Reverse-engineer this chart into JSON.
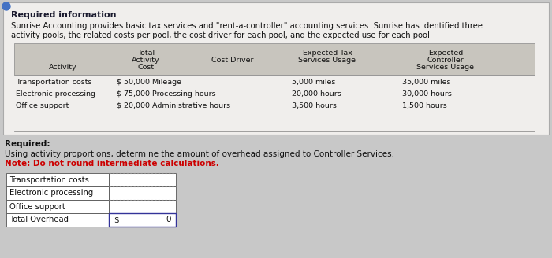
{
  "bg_color": "#c8c8c8",
  "panel_color": "#f0eeec",
  "table_bg": "#c8c5be",
  "white": "#ffffff",
  "title_bold": "Required information",
  "intro_line1": "Sunrise Accounting provides basic tax services and \"rent-a-controller\" accounting services. Sunrise has identified three",
  "intro_line2": "activity pools, the related costs per pool, the cost driver for each pool, and the expected use for each pool.",
  "col_headers": [
    [
      "",
      "",
      "Activity",
      ""
    ],
    [
      "Total",
      "Activity",
      "Cost",
      ""
    ],
    [
      "",
      "Cost Driver",
      "",
      ""
    ],
    [
      "",
      "Expected Tax",
      "Services Usage",
      ""
    ],
    [
      "Expected",
      "Controller",
      "Services Usage",
      ""
    ]
  ],
  "table_rows": [
    [
      "Transportation costs",
      "$ 50,000 Mileage",
      "5,000 miles",
      "35,000 miles"
    ],
    [
      "Electronic processing",
      "$ 75,000 Processing hours",
      "20,000 hours",
      "30,000 hours"
    ],
    [
      "Office support",
      "$ 20,000 Administrative hours",
      "3,500 hours",
      "1,500 hours"
    ]
  ],
  "required_label": "Required:",
  "required_text": "Using activity proportions, determine the amount of overhead assigned to Controller Services.",
  "note_text": "Note: Do not round intermediate calculations.",
  "answer_rows": [
    "Transportation costs",
    "Electronic processing",
    "Office support",
    "Total Overhead"
  ],
  "dollar_label": "$",
  "zero_label": "0"
}
